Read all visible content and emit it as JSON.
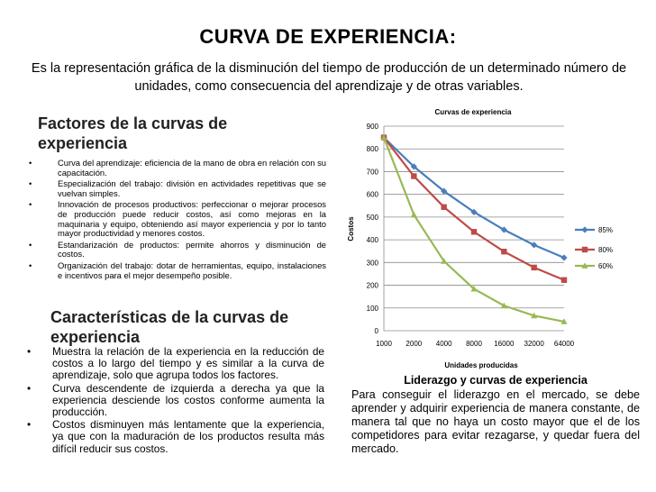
{
  "page": {
    "title": "CURVA DE EXPERIENCIA:",
    "intro": "Es la representación gráfica de la disminución del tiempo de producción de un determinado número de unidades, como consecuencia del aprendizaje y de otras variables."
  },
  "factors": {
    "heading": "Factores de la curvas de experiencia",
    "bullet": "•",
    "items": [
      "Curva del aprendizaje: eficiencia de la mano de obra en relación con su capacitación.",
      "Especialización del trabajo: división en actividades repetitivas que se vuelvan simples.",
      "Innovación de procesos productivos: perfeccionar o mejorar procesos de producción puede reducir costos, así como mejoras en la maquinaria y equipo, obteniendo así mayor experiencia y por lo tanto mayor productividad y menores costos.",
      "Estandarización de productos: permite ahorros y disminución de costos.",
      "Organización del trabajo: dotar de herramientas, equipo, instalaciones e incentivos para el mejor desempeño posible."
    ]
  },
  "characteristics": {
    "heading": "Características de la curvas de experiencia",
    "bullet": "•",
    "items": [
      "Muestra la relación de la experiencia en la reducción de costos a lo largo del tiempo y es similar a la curva de aprendizaje, solo que agrupa todos los factores.",
      "Curva descendente de izquierda a derecha ya que la experiencia desciende los costos conforme aumenta la producción.",
      "Costos disminuyen más lentamente que la experiencia, ya que con la maduración de los productos resulta más difícil reducir sus costos."
    ]
  },
  "leadership": {
    "heading": "Liderazgo y curvas de experiencia",
    "text": "Para conseguir el liderazgo en el mercado, se debe aprender y adquirir experiencia de manera constante, de manera tal que no haya un costo mayor que el de los competidores para evitar rezagarse, y quedar fuera del mercado."
  },
  "chart_data": {
    "type": "line",
    "title": "Curvas de experiencia",
    "xlabel": "Unidades producidas",
    "ylabel": "Costos",
    "categories": [
      "1000",
      "2000",
      "4000",
      "8000",
      "16000",
      "32000",
      "64000"
    ],
    "ylim": [
      0,
      900
    ],
    "yticks": [
      "0",
      "100",
      "200",
      "300",
      "400",
      "500",
      "600",
      "700",
      "800",
      "900"
    ],
    "grid": true,
    "legend": "right",
    "series": [
      {
        "name": "85%",
        "color": "#4a7ebb",
        "marker": "diamond",
        "values": [
          850,
          722,
          614,
          522,
          444,
          377,
          321
        ]
      },
      {
        "name": "80%",
        "color": "#be4b48",
        "marker": "square",
        "values": [
          850,
          680,
          544,
          435,
          348,
          278,
          223
        ]
      },
      {
        "name": "60%",
        "color": "#98b954",
        "marker": "triangle",
        "values": [
          850,
          510,
          306,
          184,
          110,
          66,
          40
        ]
      }
    ]
  }
}
